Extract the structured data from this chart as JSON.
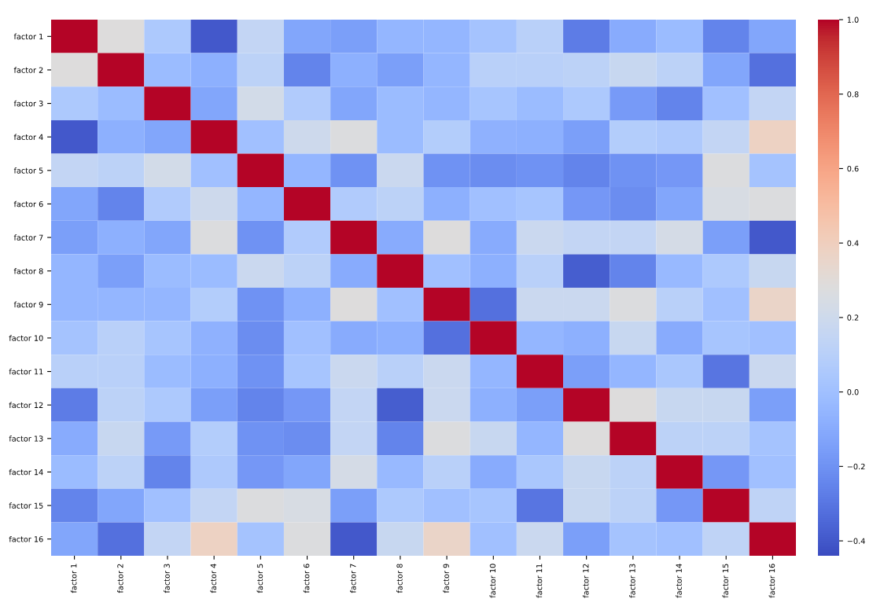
{
  "chart_data": {
    "type": "heatmap",
    "categories": [
      "factor 1",
      "factor 2",
      "factor 3",
      "factor 4",
      "factor 5",
      "factor 6",
      "factor 7",
      "factor 8",
      "factor 9",
      "factor 10",
      "factor 11",
      "factor 12",
      "factor 13",
      "factor 14",
      "factor 15",
      "factor 16"
    ],
    "y_categories": [
      "factor 1",
      "factor 2",
      "factor 3",
      "factor 4",
      "factor 5",
      "factor 6",
      "factor 7",
      "factor 8",
      "factor 9",
      "factor 10",
      "factor 11",
      "factor 12",
      "factor 13",
      "factor 14",
      "factor 15",
      "factor 16"
    ],
    "cells": [
      [
        1,
        0.28,
        0.05,
        -0.4,
        0.15,
        -0.12,
        -0.15,
        -0.05,
        -0.05,
        0.02,
        0.1,
        -0.28,
        -0.1,
        -0.02,
        -0.25,
        -0.12
      ],
      [
        0.28,
        1,
        -0.02,
        -0.08,
        0.12,
        -0.25,
        -0.08,
        -0.15,
        -0.05,
        0.1,
        0.1,
        0.12,
        0.17,
        0.12,
        -0.12,
        -0.32
      ],
      [
        0.05,
        -0.02,
        1,
        -0.12,
        0.22,
        0.07,
        -0.12,
        -0.02,
        -0.05,
        0.03,
        -0.02,
        0.05,
        -0.17,
        -0.25,
        0.0,
        0.15
      ],
      [
        -0.4,
        -0.08,
        -0.12,
        1,
        0.0,
        0.2,
        0.27,
        -0.02,
        0.08,
        -0.07,
        -0.08,
        -0.15,
        0.08,
        0.06,
        0.15,
        0.38
      ],
      [
        0.15,
        0.12,
        0.22,
        0.0,
        1,
        -0.05,
        -0.2,
        0.18,
        -0.2,
        -0.22,
        -0.2,
        -0.25,
        -0.2,
        -0.18,
        0.27,
        0.02
      ],
      [
        -0.12,
        -0.25,
        0.07,
        0.2,
        -0.05,
        1,
        0.07,
        0.12,
        -0.08,
        0.0,
        0.03,
        -0.18,
        -0.22,
        -0.12,
        0.25,
        0.27
      ],
      [
        -0.15,
        -0.08,
        -0.12,
        0.27,
        -0.2,
        0.07,
        1,
        -0.1,
        0.28,
        -0.1,
        0.18,
        0.15,
        0.15,
        0.23,
        -0.15,
        -0.4
      ],
      [
        -0.05,
        -0.15,
        -0.02,
        -0.02,
        0.18,
        0.12,
        -0.1,
        1,
        0.0,
        -0.08,
        0.1,
        -0.38,
        -0.25,
        -0.03,
        0.05,
        0.17
      ],
      [
        -0.05,
        -0.05,
        -0.05,
        0.08,
        -0.2,
        -0.08,
        0.28,
        0.0,
        1,
        -0.32,
        0.18,
        0.18,
        0.27,
        0.1,
        0.0,
        0.36
      ],
      [
        0.02,
        0.1,
        0.03,
        -0.07,
        -0.22,
        0.0,
        -0.1,
        -0.08,
        -0.32,
        1,
        -0.05,
        -0.08,
        0.17,
        -0.1,
        0.03,
        0.0
      ],
      [
        0.1,
        0.1,
        -0.02,
        -0.08,
        -0.2,
        0.03,
        0.18,
        0.1,
        0.18,
        -0.05,
        1,
        -0.15,
        -0.05,
        0.04,
        -0.3,
        0.18
      ],
      [
        -0.28,
        0.12,
        0.05,
        -0.15,
        -0.25,
        -0.18,
        0.15,
        -0.38,
        0.18,
        -0.08,
        -0.15,
        1,
        0.28,
        0.17,
        0.17,
        -0.15
      ],
      [
        -0.1,
        0.17,
        -0.17,
        0.08,
        -0.2,
        -0.22,
        0.15,
        -0.25,
        0.27,
        0.17,
        -0.05,
        0.28,
        1,
        0.12,
        0.12,
        0.02
      ],
      [
        -0.02,
        0.12,
        -0.25,
        0.06,
        -0.18,
        -0.12,
        0.23,
        -0.03,
        0.1,
        -0.1,
        0.04,
        0.17,
        0.12,
        1,
        -0.18,
        0.0
      ],
      [
        -0.25,
        -0.12,
        0.0,
        0.15,
        0.27,
        0.25,
        -0.15,
        0.05,
        0.0,
        0.03,
        -0.3,
        0.17,
        0.12,
        -0.18,
        1,
        0.13
      ],
      [
        -0.12,
        -0.32,
        0.15,
        0.38,
        0.02,
        0.27,
        -0.4,
        0.17,
        0.36,
        0.0,
        0.18,
        -0.15,
        0.02,
        0.0,
        0.13,
        1
      ]
    ],
    "clim": [
      -0.44,
      1.0
    ],
    "cticks": [
      {
        "value": -0.4,
        "label": "−0.4"
      },
      {
        "value": -0.2,
        "label": "−0.2"
      },
      {
        "value": 0,
        "label": "0.0"
      },
      0.2,
      0.4,
      0.6,
      0.8,
      {
        "value": 1,
        "label": "1.0"
      }
    ]
  }
}
